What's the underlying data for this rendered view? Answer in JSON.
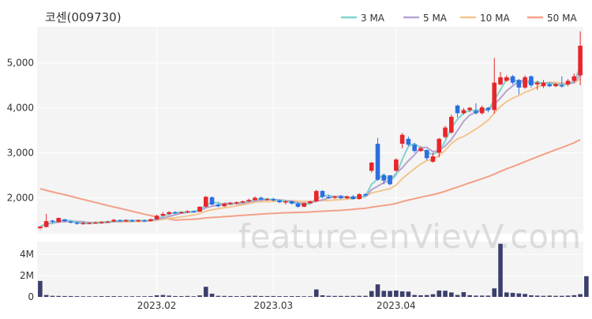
{
  "title": "코센(009730)",
  "watermark": "feature.enVievV.com",
  "colors": {
    "ma3": "#7fd3cf",
    "ma5": "#b7a3cf",
    "ma10": "#f3c58f",
    "ma50": "#f4a088",
    "up": "#e8262b",
    "down": "#2b6fe0",
    "volume": "#3b3f6b",
    "plot_bg": "#f4f4f4"
  },
  "legend": [
    {
      "label": "3 MA",
      "color": "#7fd3cf"
    },
    {
      "label": "5 MA",
      "color": "#b7a3cf"
    },
    {
      "label": "10 MA",
      "color": "#f3c58f"
    },
    {
      "label": "50 MA",
      "color": "#f4a088"
    }
  ],
  "chart_data": [
    {
      "type": "candlestick",
      "title": "코센(009730)",
      "ylim": [
        1200,
        5800
      ],
      "yticks": [
        2000,
        3000,
        4000,
        5000
      ],
      "ytick_labels": [
        "2,000",
        "3,000",
        "4,000",
        "5,000"
      ],
      "xtick_labels": [
        "2023.02",
        "2023.03",
        "2023.04"
      ],
      "xtick_index": [
        19,
        38,
        58
      ],
      "candles": [
        [
          1320,
          1360,
          1300,
          1280
        ],
        [
          1350,
          1480,
          1640,
          1340
        ],
        [
          1490,
          1460,
          1510,
          1440
        ],
        [
          1460,
          1550,
          1560,
          1440
        ],
        [
          1520,
          1480,
          1530,
          1460
        ],
        [
          1470,
          1450,
          1490,
          1430
        ],
        [
          1450,
          1420,
          1470,
          1400
        ],
        [
          1420,
          1440,
          1460,
          1400
        ],
        [
          1440,
          1440,
          1460,
          1420
        ],
        [
          1440,
          1450,
          1470,
          1420
        ],
        [
          1450,
          1460,
          1480,
          1430
        ],
        [
          1460,
          1470,
          1490,
          1440
        ],
        [
          1470,
          1510,
          1530,
          1460
        ],
        [
          1500,
          1490,
          1520,
          1470
        ],
        [
          1490,
          1500,
          1520,
          1470
        ],
        [
          1500,
          1480,
          1520,
          1460
        ],
        [
          1480,
          1500,
          1520,
          1460
        ],
        [
          1500,
          1480,
          1520,
          1460
        ],
        [
          1480,
          1520,
          1540,
          1470
        ],
        [
          1520,
          1600,
          1630,
          1510
        ],
        [
          1600,
          1640,
          1680,
          1590
        ],
        [
          1640,
          1680,
          1700,
          1610
        ],
        [
          1680,
          1670,
          1700,
          1640
        ],
        [
          1670,
          1680,
          1700,
          1650
        ],
        [
          1680,
          1700,
          1720,
          1660
        ],
        [
          1700,
          1690,
          1720,
          1670
        ],
        [
          1690,
          1800,
          1810,
          1680
        ],
        [
          1800,
          2020,
          2040,
          1780
        ],
        [
          2010,
          1850,
          2030,
          1830
        ],
        [
          1850,
          1810,
          1880,
          1790
        ],
        [
          1810,
          1870,
          1890,
          1800
        ],
        [
          1870,
          1880,
          1900,
          1850
        ],
        [
          1880,
          1900,
          1920,
          1860
        ],
        [
          1900,
          1920,
          1940,
          1880
        ],
        [
          1920,
          1950,
          1980,
          1900
        ],
        [
          1950,
          2000,
          2030,
          1930
        ],
        [
          2000,
          1960,
          2030,
          1940
        ],
        [
          1960,
          1970,
          1990,
          1940
        ],
        [
          1970,
          1940,
          2000,
          1920
        ],
        [
          1940,
          1900,
          1960,
          1880
        ],
        [
          1900,
          1920,
          1940,
          1850
        ],
        [
          1920,
          1870,
          1940,
          1850
        ],
        [
          1870,
          1800,
          1900,
          1780
        ],
        [
          1800,
          1880,
          1900,
          1790
        ],
        [
          1880,
          1920,
          1940,
          1860
        ],
        [
          1920,
          2150,
          2180,
          1900
        ],
        [
          2150,
          2020,
          2170,
          1990
        ],
        [
          2020,
          2000,
          2060,
          1980
        ],
        [
          2000,
          2030,
          2050,
          1970
        ],
        [
          2030,
          1990,
          2060,
          1970
        ],
        [
          1990,
          2030,
          2050,
          1970
        ],
        [
          2030,
          1970,
          2060,
          1960
        ],
        [
          1970,
          2080,
          2100,
          1960
        ],
        [
          2080,
          2050,
          2100,
          2030
        ],
        [
          2600,
          2780,
          2800,
          2560
        ],
        [
          3200,
          2400,
          3330,
          2380
        ],
        [
          2500,
          2380,
          2530,
          2300
        ],
        [
          2500,
          2300,
          2420,
          2280
        ],
        [
          2600,
          2850,
          2880,
          2580
        ],
        [
          3200,
          3400,
          3440,
          3100
        ],
        [
          3310,
          3180,
          3360,
          3150
        ],
        [
          3180,
          3040,
          3210,
          3000
        ],
        [
          3040,
          3100,
          3150,
          3020
        ],
        [
          3060,
          2880,
          3080,
          2840
        ],
        [
          2800,
          2920,
          3000,
          2780
        ],
        [
          3000,
          3310,
          3330,
          2900
        ],
        [
          3350,
          3560,
          3600,
          3320
        ],
        [
          3450,
          3800,
          3850,
          3420
        ],
        [
          4050,
          3880,
          4070,
          3780
        ],
        [
          3880,
          3950,
          4000,
          3850
        ],
        [
          3950,
          4000,
          4020,
          3900
        ],
        [
          3930,
          3880,
          4100,
          3850
        ],
        [
          3880,
          4010,
          4050,
          3850
        ],
        [
          4000,
          3950,
          4020,
          3900
        ],
        [
          3950,
          4560,
          5110,
          3870
        ],
        [
          4520,
          4680,
          4800,
          4500
        ],
        [
          4600,
          4680,
          4720,
          4580
        ],
        [
          4700,
          4560,
          4730,
          4520
        ],
        [
          4620,
          4450,
          4640,
          4300
        ],
        [
          4450,
          4680,
          4720,
          4420
        ],
        [
          4700,
          4500,
          4720,
          4450
        ],
        [
          4520,
          4560,
          4600,
          4400
        ],
        [
          4480,
          4560,
          4620,
          4440
        ],
        [
          4520,
          4480,
          4560,
          4460
        ],
        [
          4480,
          4530,
          4550,
          4460
        ],
        [
          4500,
          4480,
          4700,
          4450
        ],
        [
          4520,
          4600,
          4640,
          4480
        ],
        [
          4600,
          4700,
          4760,
          4560
        ],
        [
          4720,
          5380,
          5700,
          4500
        ]
      ],
      "volume": {
        "ylim": [
          0,
          5200000
        ],
        "yticks": [
          0,
          2000000,
          4000000
        ],
        "ytick_labels": [
          "0",
          "2M",
          "4M"
        ],
        "values": [
          1500000,
          180000,
          100000,
          90000,
          80000,
          80000,
          70000,
          60000,
          60000,
          60000,
          70000,
          70000,
          70000,
          60000,
          60000,
          60000,
          60000,
          60000,
          70000,
          150000,
          180000,
          120000,
          80000,
          70000,
          90000,
          60000,
          140000,
          950000,
          300000,
          100000,
          90000,
          80000,
          70000,
          70000,
          90000,
          100000,
          80000,
          80000,
          80000,
          70000,
          70000,
          70000,
          70000,
          60000,
          60000,
          700000,
          150000,
          100000,
          90000,
          90000,
          90000,
          90000,
          100000,
          100000,
          550000,
          1180000,
          570000,
          560000,
          600000,
          520000,
          500000,
          180000,
          150000,
          170000,
          250000,
          600000,
          580000,
          420000,
          180000,
          450000,
          160000,
          120000,
          120000,
          120000,
          800000,
          5000000,
          420000,
          380000,
          330000,
          280000,
          150000,
          120000,
          100000,
          120000,
          100000,
          100000,
          120000,
          160000,
          260000,
          1950000
        ]
      }
    }
  ]
}
